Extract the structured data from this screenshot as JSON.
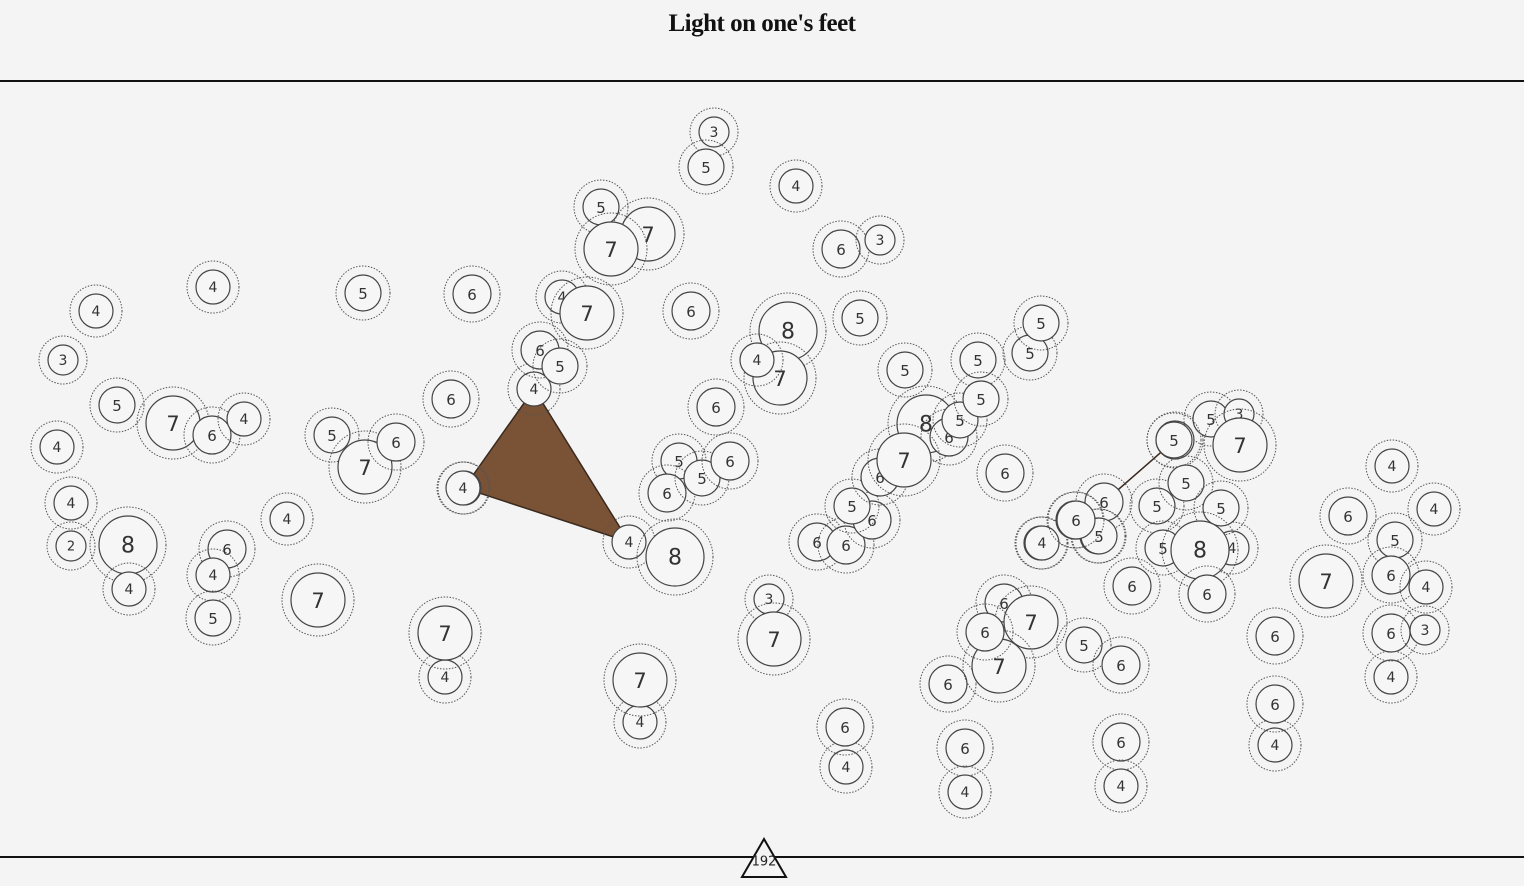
{
  "title": "Light on one's feet",
  "level": "192",
  "colors": {
    "dark_triangle": "#7a5236",
    "light_triangle": "#e8bc96",
    "node_fill": "#f7f6f7",
    "line": "#111111"
  },
  "nodes": [
    {
      "id": "n1",
      "v": 3
    },
    {
      "id": "n2",
      "v": 5
    },
    {
      "id": "n3",
      "v": 4
    },
    {
      "id": "n4",
      "v": 5
    },
    {
      "id": "n5",
      "v": 7
    },
    {
      "id": "n6",
      "v": 7
    },
    {
      "id": "n7",
      "v": 6
    },
    {
      "id": "n8",
      "v": 3
    },
    {
      "id": "n9",
      "v": 4
    },
    {
      "id": "n10",
      "v": 4
    },
    {
      "id": "n11",
      "v": 5
    },
    {
      "id": "n12",
      "v": 6
    },
    {
      "id": "n13",
      "v": 4
    },
    {
      "id": "n14",
      "v": 7
    },
    {
      "id": "n15",
      "v": 5
    },
    {
      "id": "n16",
      "v": 6
    },
    {
      "id": "n17",
      "v": 8
    },
    {
      "id": "n18",
      "v": 4
    },
    {
      "id": "n19",
      "v": 7
    },
    {
      "id": "n20",
      "v": 6
    },
    {
      "id": "n21",
      "v": 5
    },
    {
      "id": "n22",
      "v": 3
    },
    {
      "id": "n23",
      "v": 4
    },
    {
      "id": "n24",
      "v": 5
    },
    {
      "id": "n25",
      "v": 7
    },
    {
      "id": "n26",
      "v": 6
    },
    {
      "id": "n27",
      "v": 5
    },
    {
      "id": "n28",
      "v": 4
    },
    {
      "id": "n29",
      "v": 4
    },
    {
      "id": "n30",
      "v": 4
    },
    {
      "id": "n31",
      "v": 2
    },
    {
      "id": "n32",
      "v": 8
    },
    {
      "id": "n33",
      "v": 4
    },
    {
      "id": "n34",
      "v": 6
    },
    {
      "id": "n35",
      "v": 4
    },
    {
      "id": "n36",
      "v": 5
    },
    {
      "id": "n37",
      "v": 4
    },
    {
      "id": "n38",
      "v": 7
    },
    {
      "id": "n39",
      "v": 5
    },
    {
      "id": "n40",
      "v": 7
    },
    {
      "id": "n41",
      "v": 6
    },
    {
      "id": "n42",
      "v": 6
    },
    {
      "id": "n43",
      "v": 4
    },
    {
      "id": "n44",
      "v": 7
    },
    {
      "id": "n45",
      "v": 4
    },
    {
      "id": "n46",
      "v": 6
    },
    {
      "id": "n47",
      "v": 5
    },
    {
      "id": "n48",
      "v": 4
    },
    {
      "id": "n49",
      "v": 6
    },
    {
      "id": "n50",
      "v": 5
    },
    {
      "id": "n51",
      "v": 6
    },
    {
      "id": "n52",
      "v": 6
    },
    {
      "id": "n53",
      "v": 6
    },
    {
      "id": "n54",
      "v": 4
    },
    {
      "id": "n55",
      "v": 8
    },
    {
      "id": "n56",
      "v": 7
    },
    {
      "id": "n57",
      "v": 4
    },
    {
      "id": "n58",
      "v": 3
    },
    {
      "id": "n59",
      "v": 7
    },
    {
      "id": "n60",
      "v": 6
    },
    {
      "id": "n61",
      "v": 6
    },
    {
      "id": "n62",
      "v": 5
    },
    {
      "id": "n63",
      "v": 6
    },
    {
      "id": "n64",
      "v": 5
    },
    {
      "id": "n65",
      "v": 8
    },
    {
      "id": "n66",
      "v": 6
    },
    {
      "id": "n67",
      "v": 5
    },
    {
      "id": "n68",
      "v": 7
    },
    {
      "id": "n69",
      "v": 6
    },
    {
      "id": "n70",
      "v": 5
    },
    {
      "id": "n71",
      "v": 6
    },
    {
      "id": "n72",
      "v": 6
    },
    {
      "id": "n73",
      "v": 5
    },
    {
      "id": "n74",
      "v": 6
    },
    {
      "id": "n75",
      "v": 4
    },
    {
      "id": "n76",
      "v": 5
    },
    {
      "id": "n77",
      "v": 5
    },
    {
      "id": "n78",
      "v": 6
    },
    {
      "id": "n79",
      "v": 7
    },
    {
      "id": "n80",
      "v": 6
    },
    {
      "id": "n81",
      "v": 7
    },
    {
      "id": "n82",
      "v": 6
    },
    {
      "id": "n83",
      "v": 5
    },
    {
      "id": "n84",
      "v": 6
    },
    {
      "id": "n85",
      "v": 6
    },
    {
      "id": "n86",
      "v": 4
    },
    {
      "id": "n87",
      "v": 6
    },
    {
      "id": "n88",
      "v": 4
    },
    {
      "id": "n89",
      "v": 6
    },
    {
      "id": "n90",
      "v": 4
    },
    {
      "id": "n91",
      "v": 6
    },
    {
      "id": "n92",
      "v": 4
    },
    {
      "id": "n93",
      "v": 5
    },
    {
      "id": "n94",
      "v": 6
    },
    {
      "id": "n95",
      "v": 5
    },
    {
      "id": "n96",
      "v": 4
    },
    {
      "id": "n97",
      "v": 5
    },
    {
      "id": "n98",
      "v": 3
    },
    {
      "id": "n99",
      "v": 7
    },
    {
      "id": "n100",
      "v": 5
    },
    {
      "id": "n101",
      "v": 5
    },
    {
      "id": "n102",
      "v": 5
    },
    {
      "id": "n103",
      "v": 5
    },
    {
      "id": "n104",
      "v": 8
    },
    {
      "id": "n105",
      "v": 4
    },
    {
      "id": "n106",
      "v": 6
    },
    {
      "id": "n107",
      "v": 6
    },
    {
      "id": "n108",
      "v": 7
    },
    {
      "id": "n109",
      "v": 6
    },
    {
      "id": "n110",
      "v": 6
    },
    {
      "id": "n111",
      "v": 4
    },
    {
      "id": "n112",
      "v": 4
    },
    {
      "id": "n113",
      "v": 4
    },
    {
      "id": "n114",
      "v": 6
    },
    {
      "id": "n115",
      "v": 5
    },
    {
      "id": "n116",
      "v": 6
    },
    {
      "id": "n117",
      "v": 4
    },
    {
      "id": "n118",
      "v": 6
    },
    {
      "id": "n119",
      "v": 3
    },
    {
      "id": "n120",
      "v": 4
    },
    {
      "id": "n121",
      "v": 6
    },
    {
      "id": "n122",
      "v": 4
    }
  ],
  "triangles": [
    {
      "id": "dark",
      "color_key": "dark_triangle",
      "nodes": [
        "n45",
        "n18",
        "n48"
      ]
    },
    {
      "id": "light",
      "color_key": "light_triangle",
      "nodes": [
        "n78",
        "n91",
        "n80"
      ]
    }
  ]
}
